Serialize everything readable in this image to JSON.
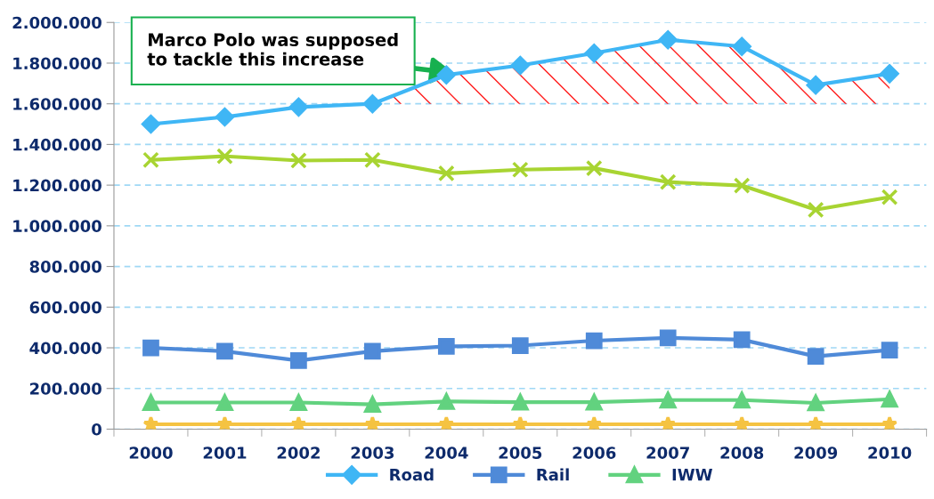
{
  "chart_data": {
    "type": "line",
    "categories": [
      "2000",
      "2001",
      "2002",
      "2003",
      "2004",
      "2005",
      "2006",
      "2007",
      "2008",
      "2009",
      "2010"
    ],
    "series": [
      {
        "name": "Road",
        "color": "#3fb6f5",
        "marker": "diamond",
        "values": [
          1500000,
          1535000,
          1584000,
          1600000,
          1742000,
          1789000,
          1849000,
          1915000,
          1882000,
          1692000,
          1748000
        ],
        "lower": [
          null,
          null,
          null,
          1600000,
          1600000,
          1600000,
          1600000,
          1600000,
          1600000,
          1600000,
          1600000
        ],
        "upper": [
          null,
          null,
          null,
          1600000,
          1742000,
          1789000,
          1849000,
          1915000,
          1882000,
          1692000,
          1748000
        ]
      },
      {
        "name": "Rail",
        "color": "#4f8ad8",
        "marker": "square",
        "values": [
          400000,
          383000,
          337000,
          383000,
          407000,
          411000,
          435000,
          449000,
          440000,
          358000,
          389000
        ]
      },
      {
        "name": "IWW",
        "color": "#62d27f",
        "marker": "triangle",
        "values": [
          131000,
          131000,
          131000,
          122000,
          136000,
          133000,
          133000,
          143000,
          143000,
          129000,
          147000
        ]
      },
      {
        "color": "#a8d432",
        "marker": "cross",
        "values": [
          1324000,
          1342000,
          1321000,
          1324000,
          1258000,
          1276000,
          1283000,
          1215000,
          1198000,
          1079000,
          1141000
        ]
      },
      {
        "color": "#f5c342",
        "marker": "star",
        "values": [
          24000,
          24000,
          24000,
          24000,
          24000,
          24000,
          24000,
          24000,
          24000,
          24000,
          24000
        ]
      }
    ],
    "ylim": [
      0,
      2000000
    ],
    "yticks": [
      {
        "value": 0,
        "label": "0"
      },
      {
        "value": 200000,
        "label": "200.000"
      },
      {
        "value": 400000,
        "label": "400.000"
      },
      {
        "value": 600000,
        "label": "600.000"
      },
      {
        "value": 800000,
        "label": "800.000"
      },
      {
        "value": 1000000,
        "label": "1.000.000"
      },
      {
        "value": 1200000,
        "label": "1.200.000"
      },
      {
        "value": 1400000,
        "label": "1.400.000"
      },
      {
        "value": 1600000,
        "label": "1.600.000"
      },
      {
        "value": 1800000,
        "label": "1.800.000"
      },
      {
        "value": 2000000,
        "label": "2.000.000"
      }
    ],
    "grid": "y",
    "legend": "bottom",
    "annotations": [
      {
        "text": "Marco Polo was supposed\nto tackle this increase",
        "x": "2004",
        "y": 1742000
      }
    ]
  }
}
